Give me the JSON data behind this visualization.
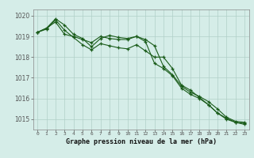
{
  "hours": [
    0,
    1,
    2,
    3,
    4,
    5,
    6,
    7,
    8,
    9,
    10,
    11,
    12,
    13,
    14,
    15,
    16,
    17,
    18,
    19,
    20,
    21,
    22,
    23
  ],
  "line1": [
    1019.2,
    1019.4,
    1019.7,
    1019.1,
    1019.0,
    1018.85,
    1018.7,
    1019.0,
    1018.9,
    1018.85,
    1018.85,
    1019.0,
    1018.75,
    1017.7,
    1017.45,
    1017.1,
    1016.5,
    1016.2,
    1016.0,
    1015.7,
    1015.3,
    1015.05,
    1014.85,
    1014.8
  ],
  "line2": [
    1019.2,
    1019.4,
    1019.85,
    1019.55,
    1019.1,
    1018.9,
    1018.5,
    1018.9,
    1019.05,
    1018.95,
    1018.9,
    1019.0,
    1018.85,
    1018.55,
    1017.55,
    1017.15,
    1016.6,
    1016.3,
    1016.1,
    1015.85,
    1015.5,
    1015.1,
    1014.9,
    1014.85
  ],
  "line3": [
    1019.2,
    1019.35,
    1019.8,
    1019.3,
    1018.95,
    1018.6,
    1018.35,
    1018.65,
    1018.55,
    1018.45,
    1018.4,
    1018.6,
    1018.3,
    1018.0,
    1018.0,
    1017.45,
    1016.65,
    1016.4,
    1016.05,
    1015.7,
    1015.3,
    1015.0,
    1014.85,
    1014.75
  ],
  "line_color": "#1a5c1a",
  "bg_color": "#d5ede8",
  "grid_color": "#b0cfc8",
  "axis_color": "#888888",
  "xlabel": "Graphe pression niveau de la mer (hPa)",
  "ylim": [
    1014.5,
    1020.3
  ],
  "yticks": [
    1015,
    1016,
    1017,
    1018,
    1019,
    1020
  ],
  "xlim": [
    -0.5,
    23.5
  ],
  "xtick_fontsize": 4.5,
  "ytick_fontsize": 5.5,
  "xlabel_fontsize": 6.0
}
